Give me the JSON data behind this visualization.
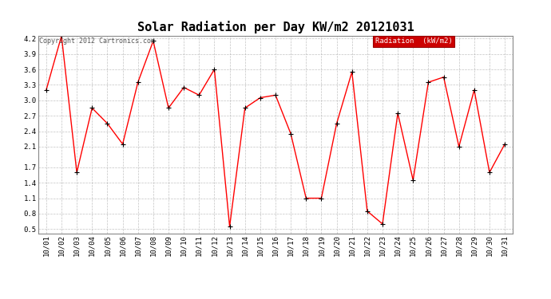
{
  "title": "Solar Radiation per Day KW/m2 20121031",
  "copyright_text": "Copyright 2012 Cartronics.com",
  "legend_label": "Radiation  (kW/m2)",
  "dates": [
    "10/01",
    "10/02",
    "10/03",
    "10/04",
    "10/05",
    "10/06",
    "10/07",
    "10/08",
    "10/09",
    "10/10",
    "10/11",
    "10/12",
    "10/13",
    "10/14",
    "10/15",
    "10/16",
    "10/17",
    "10/18",
    "10/19",
    "10/20",
    "10/21",
    "10/22",
    "10/23",
    "10/24",
    "10/25",
    "10/26",
    "10/27",
    "10/28",
    "10/29",
    "10/30",
    "10/31"
  ],
  "values": [
    3.2,
    4.25,
    1.6,
    2.85,
    2.55,
    2.15,
    3.35,
    4.15,
    2.85,
    3.25,
    3.1,
    3.6,
    0.55,
    2.85,
    3.05,
    3.1,
    2.35,
    1.1,
    1.1,
    2.55,
    3.55,
    0.85,
    0.6,
    2.75,
    1.45,
    3.35,
    3.45,
    2.1,
    3.2,
    1.6,
    2.15
  ],
  "line_color": "#ff0000",
  "marker_color": "#000000",
  "bg_color": "#ffffff",
  "grid_color": "#aaaaaa",
  "ylim_min": 0.5,
  "ylim_max": 4.2,
  "yticks": [
    0.5,
    0.8,
    1.1,
    1.4,
    1.7,
    2.1,
    2.4,
    2.7,
    3.0,
    3.3,
    3.6,
    3.9,
    4.2
  ],
  "legend_bg": "#cc0000",
  "legend_text_color": "#ffffff",
  "title_fontsize": 11,
  "tick_fontsize": 6.5,
  "copyright_fontsize": 6
}
